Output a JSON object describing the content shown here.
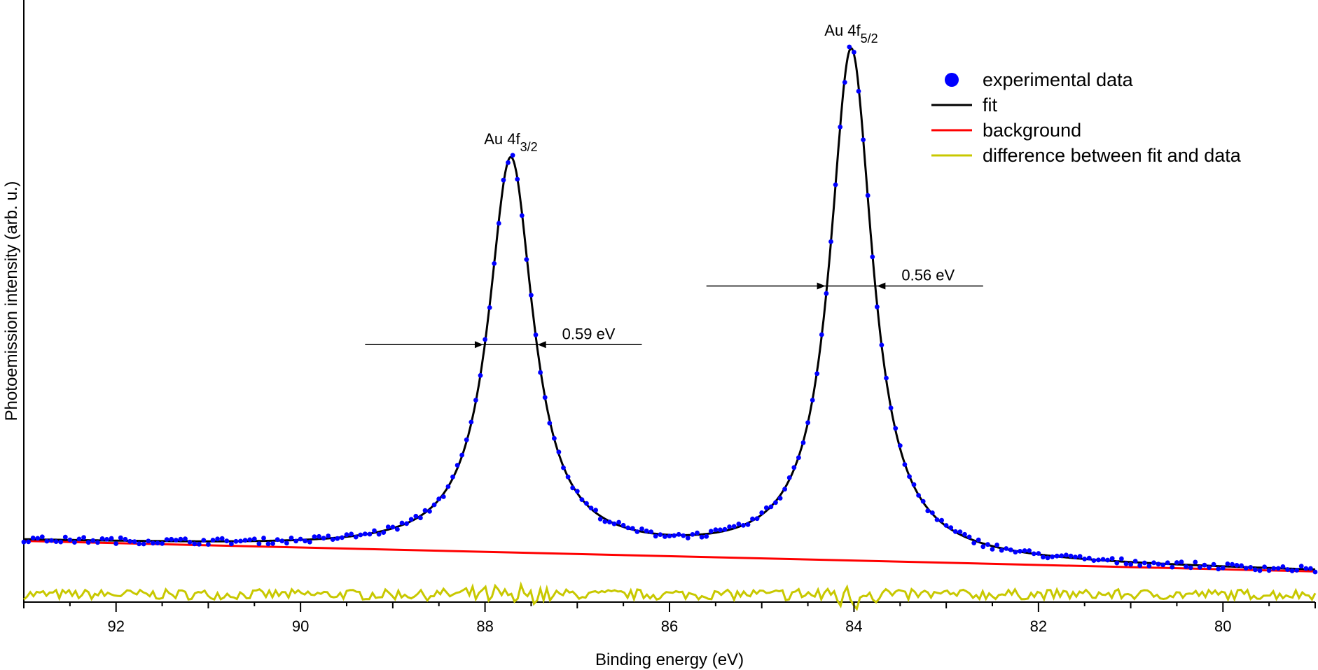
{
  "chart_data": {
    "type": "scatter",
    "xlabel": "Binding energy (eV)",
    "ylabel": "Photoemission intensity (arb. u.)",
    "xlim": [
      93.0,
      79.0
    ],
    "x_reversed": true,
    "ylim": [
      -0.12,
      1.05
    ],
    "xticks": [
      "92",
      "90",
      "88",
      "86",
      "84",
      "82",
      "80"
    ],
    "grid": false,
    "legend_position": "top-right",
    "model": {
      "background": {
        "x": [
          93.0,
          79.0
        ],
        "y": [
          0.0,
          -0.06
        ]
      },
      "peaks": [
        {
          "center": 87.72,
          "height": 0.77,
          "fwhm": 0.59
        },
        {
          "center": 84.03,
          "height": 1.0,
          "fwhm": 0.56
        }
      ],
      "difference_offset": -0.105
    },
    "series": [
      {
        "name": "experimental data",
        "style": "points",
        "color": "#0000ff"
      },
      {
        "name": "fit",
        "style": "line",
        "color": "#000000"
      },
      {
        "name": "background",
        "style": "line",
        "color": "#ff0000"
      },
      {
        "name": "difference between fit and data",
        "style": "line",
        "color": "#c8c800"
      }
    ],
    "annotations": {
      "peak_labels": [
        {
          "base": "Au 4f",
          "sub": "3/2",
          "x": 87.72
        },
        {
          "base": "Au 4f",
          "sub": "5/2",
          "x": 84.03
        }
      ],
      "fwhm_markers": [
        {
          "text": "0.59 eV",
          "x_left": 89.3,
          "x_right": 86.3,
          "y": 0.385,
          "peak_left": 88.02,
          "peak_right": 87.43
        },
        {
          "text": "0.56 eV",
          "x_left": 85.6,
          "x_right": 82.6,
          "y": 0.5,
          "peak_left": 84.31,
          "peak_right": 83.75
        }
      ]
    }
  }
}
